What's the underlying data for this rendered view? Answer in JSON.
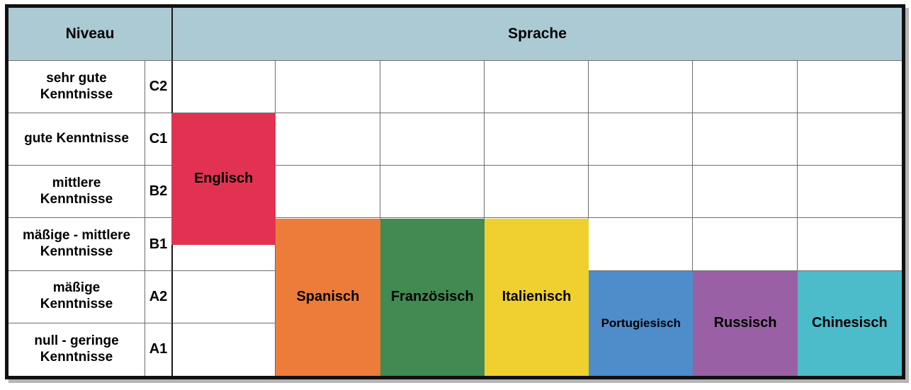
{
  "header": {
    "niveau": "Niveau",
    "sprache": "Sprache"
  },
  "levels": [
    {
      "label": "sehr gute\nKenntnisse",
      "code": "C2"
    },
    {
      "label": "gute Kenntnisse",
      "code": "C1"
    },
    {
      "label": "mittlere\nKenntnisse",
      "code": "B2"
    },
    {
      "label": "mäßige - mittlere\nKenntnisse",
      "code": "B1"
    },
    {
      "label": "mäßige\nKenntnisse",
      "code": "A2"
    },
    {
      "label": "null - geringe\nKenntnisse",
      "code": "A1"
    }
  ],
  "colors": {
    "header_bg": "#abcad4",
    "outer_border": "#111111",
    "grid_line": "#6e6e6e",
    "shadow": "#b5b5b5"
  },
  "chart_data": {
    "type": "bar",
    "orientation": "vertical-range-over-table-grid",
    "level_rows_top_to_bottom": [
      "C2",
      "C1",
      "B2",
      "B1",
      "A2",
      "A1"
    ],
    "languages": [
      {
        "name": "Englisch",
        "color": "#e13351",
        "column": 0,
        "level_top": "C1",
        "level_bottom": "B1 (middle)",
        "row_span": [
          1,
          3.5
        ]
      },
      {
        "name": "Spanisch",
        "color": "#ed7c3a",
        "column": 1,
        "level_top": "B1",
        "level_bottom": "A1",
        "row_span": [
          3,
          6
        ]
      },
      {
        "name": "Französisch",
        "color": "#418a52",
        "column": 2,
        "level_top": "B1",
        "level_bottom": "A1",
        "row_span": [
          3,
          6
        ]
      },
      {
        "name": "Italienisch",
        "color": "#f0d02f",
        "column": 3,
        "level_top": "B1",
        "level_bottom": "A1",
        "row_span": [
          3,
          6
        ]
      },
      {
        "name": "Portugiesisch",
        "color": "#4e8cca",
        "column": 4,
        "level_top": "A2",
        "level_bottom": "A1",
        "row_span": [
          4,
          6
        ]
      },
      {
        "name": "Russisch",
        "color": "#9a60a5",
        "column": 5,
        "level_top": "A2",
        "level_bottom": "A1",
        "row_span": [
          4,
          6
        ]
      },
      {
        "name": "Chinesisch",
        "color": "#4dbcca",
        "column": 6,
        "level_top": "A2",
        "level_bottom": "A1",
        "row_span": [
          4,
          6
        ]
      }
    ]
  }
}
